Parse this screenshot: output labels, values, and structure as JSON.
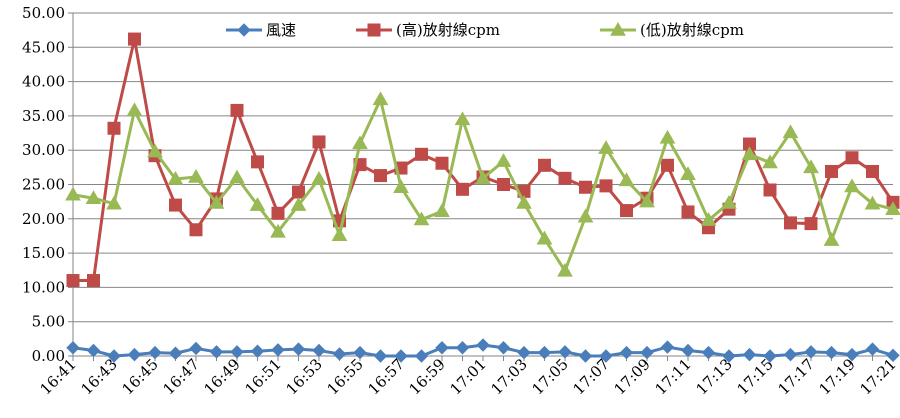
{
  "chart_data": {
    "type": "line",
    "title": "",
    "xlabel": "",
    "ylabel": "",
    "ylim": [
      0,
      50
    ],
    "yticks": [
      "0.00",
      "5.00",
      "10.00",
      "15.00",
      "20.00",
      "25.00",
      "30.00",
      "35.00",
      "40.00",
      "45.00",
      "50.00"
    ],
    "x": [
      "16:41",
      "16:42",
      "16:43",
      "16:44",
      "16:45",
      "16:46",
      "16:47",
      "16:48",
      "16:49",
      "16:50",
      "16:51",
      "16:52",
      "16:53",
      "16:54",
      "16:55",
      "16:56",
      "16:57",
      "16:58",
      "16:59",
      "17:00",
      "17:01",
      "17:02",
      "17:03",
      "17:04",
      "17:05",
      "17:06",
      "17:07",
      "17:08",
      "17:09",
      "17:10",
      "17:11",
      "17:12",
      "17:13",
      "17:14",
      "17:15",
      "17:16",
      "17:17",
      "17:18",
      "17:19",
      "17:20",
      "17:21"
    ],
    "x_tick_labels": [
      "16:41",
      "16:43",
      "16:45",
      "16:47",
      "16:49",
      "16:51",
      "16:53",
      "16:55",
      "16:57",
      "16:59",
      "17:01",
      "17:03",
      "17:05",
      "17:07",
      "17:09",
      "17:11",
      "17:13",
      "17:15",
      "17:17",
      "17:19",
      "17:21"
    ],
    "grid": true,
    "legend_position": "top",
    "series": [
      {
        "name": "風速",
        "color": "#4a7ebb",
        "marker": "diamond",
        "values": [
          1.2,
          0.8,
          0.0,
          0.2,
          0.5,
          0.4,
          1.1,
          0.6,
          0.6,
          0.7,
          0.9,
          1.0,
          0.8,
          0.3,
          0.5,
          0.0,
          0.0,
          0.0,
          1.2,
          1.2,
          1.6,
          1.2,
          0.5,
          0.5,
          0.6,
          0.0,
          0.0,
          0.5,
          0.5,
          1.3,
          0.8,
          0.5,
          0.0,
          0.2,
          0.0,
          0.2,
          0.6,
          0.5,
          0.2,
          1.0,
          0.1
        ]
      },
      {
        "name": "(高)放射線cpm",
        "color": "#be4b48",
        "marker": "square",
        "values": [
          11.0,
          11.0,
          33.2,
          46.2,
          29.2,
          22.0,
          18.4,
          22.9,
          35.8,
          28.3,
          20.8,
          23.9,
          31.2,
          19.7,
          27.9,
          26.3,
          27.4,
          29.4,
          28.1,
          24.3,
          26.1,
          25.0,
          24.0,
          27.8,
          25.9,
          24.6,
          24.8,
          21.2,
          23.0,
          27.8,
          21.0,
          18.7,
          21.4,
          30.9,
          24.2,
          19.4,
          19.3,
          26.9,
          28.9,
          26.9,
          22.4
        ]
      },
      {
        "name": "(低)放射線cpm",
        "color": "#98b954",
        "marker": "triangle",
        "values": [
          23.5,
          23.0,
          22.2,
          35.8,
          29.8,
          25.8,
          26.1,
          22.3,
          26.0,
          22.0,
          18.1,
          22.0,
          25.8,
          17.6,
          31.0,
          37.4,
          24.6,
          19.9,
          21.1,
          34.5,
          25.9,
          28.4,
          22.3,
          17.1,
          12.4,
          20.3,
          30.3,
          25.6,
          22.5,
          31.8,
          26.5,
          19.8,
          22.3,
          29.4,
          28.2,
          32.6,
          27.5,
          16.9,
          24.7,
          22.2,
          21.4
        ]
      }
    ]
  }
}
